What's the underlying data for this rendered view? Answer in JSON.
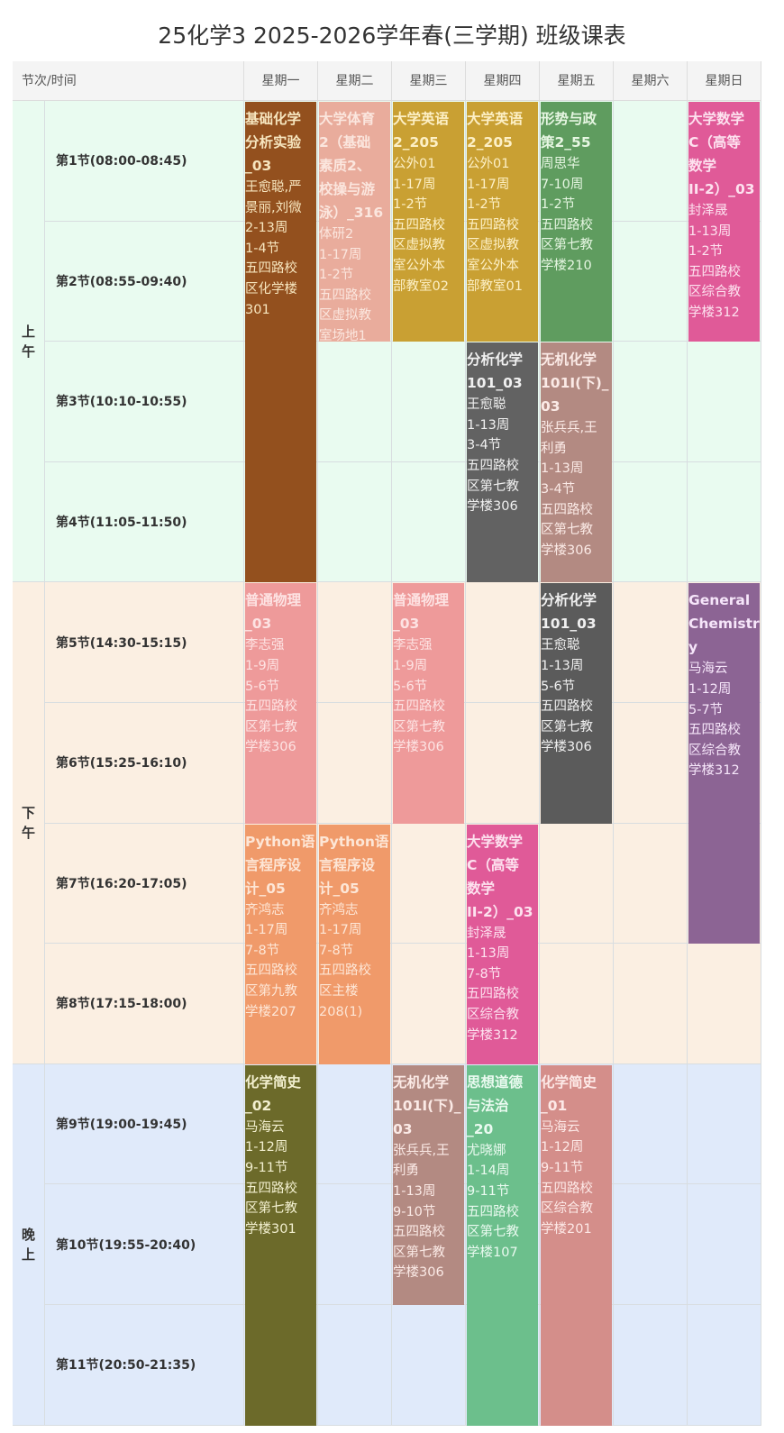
{
  "title": "25化学3 2025-2026学年春(三学期) 班级课表",
  "header": {
    "first": "节次/时间",
    "days": [
      "星期一",
      "星期二",
      "星期三",
      "星期四",
      "星期五",
      "星期六",
      "星期日"
    ]
  },
  "sections": [
    {
      "label": "上午",
      "from": 1,
      "to": 4,
      "bg": "#e9fbf0"
    },
    {
      "label": "下午",
      "from": 5,
      "to": 8,
      "bg": "#fbefe2"
    },
    {
      "label": "晚上",
      "from": 9,
      "to": 11,
      "bg": "#e0eafa"
    }
  ],
  "periods": [
    "第1节(08:00-08:45)",
    "第2节(08:55-09:40)",
    "第3节(10:10-10:55)",
    "第4节(11:05-11:50)",
    "第5节(14:30-15:15)",
    "第6节(15:25-16:10)",
    "第7节(16:20-17:05)",
    "第8节(17:15-18:00)",
    "第9节(19:00-19:45)",
    "第10节(19:55-20:40)",
    "第11节(20:50-21:35)"
  ],
  "courses": [
    {
      "day": 1,
      "start": 1,
      "span": 4,
      "color": "#93501e",
      "text_color": "#f7e6bf",
      "title": [
        "基础化学",
        "分析实验",
        "_03"
      ],
      "details": [
        "王愈聪,严",
        "景丽,刘微",
        "2-13周",
        "1-4节",
        "五四路校",
        "区化学楼",
        "301"
      ]
    },
    {
      "day": 2,
      "start": 1,
      "span": 2,
      "color": "#e9ac9c",
      "text_color": "#fbe6de",
      "title": [
        "大学体育",
        "2（基础",
        "素质2、",
        "校操与游",
        "泳）_316"
      ],
      "details": [
        "体研2",
        "1-17周",
        "1-2节",
        "五四路校",
        "区虚拟教",
        "室场地1"
      ]
    },
    {
      "day": 3,
      "start": 1,
      "span": 2,
      "color": "#c9a033",
      "text_color": "#fdf0c6",
      "title": [
        "大学英语",
        "2_205"
      ],
      "details": [
        "公外01",
        "1-17周",
        "1-2节",
        "五四路校",
        "区虚拟教",
        "室公外本",
        "部教室02"
      ]
    },
    {
      "day": 4,
      "start": 1,
      "span": 2,
      "color": "#c9a033",
      "text_color": "#fdf0c6",
      "title": [
        "大学英语",
        "2_205"
      ],
      "details": [
        "公外01",
        "1-17周",
        "1-2节",
        "五四路校",
        "区虚拟教",
        "室公外本",
        "部教室01"
      ]
    },
    {
      "day": 5,
      "start": 1,
      "span": 2,
      "color": "#5f9c5f",
      "text_color": "#e6f6e2",
      "title": [
        "形势与政",
        "策2_55"
      ],
      "details": [
        "周思华",
        "7-10周",
        "1-2节",
        "五四路校",
        "区第七教",
        "学楼210"
      ]
    },
    {
      "day": 7,
      "start": 1,
      "span": 2,
      "color": "#e05a98",
      "text_color": "#fde2ef",
      "title": [
        "大学数学",
        "C（高等",
        "数学",
        "II-2）_03"
      ],
      "details": [
        "封泽晟",
        "1-13周",
        "1-2节",
        "五四路校",
        "区综合教",
        "学楼312"
      ]
    },
    {
      "day": 4,
      "start": 3,
      "span": 2,
      "color": "#626262",
      "text_color": "#f0f0f0",
      "title": [
        "分析化学",
        "101_03"
      ],
      "details": [
        "王愈聪",
        "1-13周",
        "3-4节",
        "五四路校",
        "区第七教",
        "学楼306"
      ]
    },
    {
      "day": 5,
      "start": 3,
      "span": 2,
      "color": "#b38a82",
      "text_color": "#fbeae6",
      "title": [
        "无机化学",
        "101I(下)_03"
      ],
      "details": [
        "张兵兵,王",
        "利勇",
        "1-13周",
        "3-4节",
        "五四路校",
        "区第七教",
        "学楼306"
      ]
    },
    {
      "day": 1,
      "start": 5,
      "span": 2,
      "color": "#ee9a9a",
      "text_color": "#fde3e3",
      "title": [
        "普通物理",
        "_03"
      ],
      "details": [
        "李志强",
        "1-9周",
        "5-6节",
        "五四路校",
        "区第七教",
        "学楼306"
      ]
    },
    {
      "day": 3,
      "start": 5,
      "span": 2,
      "color": "#ee9a9a",
      "text_color": "#fde3e3",
      "title": [
        "普通物理",
        "_03"
      ],
      "details": [
        "李志强",
        "1-9周",
        "5-6节",
        "五四路校",
        "区第七教",
        "学楼306"
      ]
    },
    {
      "day": 5,
      "start": 5,
      "span": 2,
      "color": "#5b5b5b",
      "text_color": "#f0f0f0",
      "title": [
        "分析化学",
        "101_03"
      ],
      "details": [
        "王愈聪",
        "1-13周",
        "5-6节",
        "五四路校",
        "区第七教",
        "学楼306"
      ]
    },
    {
      "day": 7,
      "start": 5,
      "span": 3,
      "color": "#8c6494",
      "text_color": "#f6e6fa",
      "title": [
        "General",
        "Chemistry"
      ],
      "details": [
        "马海云",
        "1-12周",
        "5-7节",
        "五四路校",
        "区综合教",
        "学楼312"
      ]
    },
    {
      "day": 1,
      "start": 7,
      "span": 2,
      "color": "#f09a6a",
      "text_color": "#fde6d6",
      "title": [
        "Python语",
        "言程序设",
        "计_05"
      ],
      "details": [
        "齐鸿志",
        "1-17周",
        "7-8节",
        "五四路校",
        "区第九教",
        "学楼207"
      ]
    },
    {
      "day": 2,
      "start": 7,
      "span": 2,
      "color": "#f09a6a",
      "text_color": "#fde6d6",
      "title": [
        "Python语",
        "言程序设",
        "计_05"
      ],
      "details": [
        "齐鸿志",
        "1-17周",
        "7-8节",
        "五四路校",
        "区主楼",
        "208(1)"
      ]
    },
    {
      "day": 4,
      "start": 7,
      "span": 2,
      "color": "#e05a98",
      "text_color": "#fde2ef",
      "title": [
        "大学数学",
        "C（高等",
        "数学",
        "II-2）_03"
      ],
      "details": [
        "封泽晟",
        "1-13周",
        "7-8节",
        "五四路校",
        "区综合教",
        "学楼312"
      ]
    },
    {
      "day": 1,
      "start": 9,
      "span": 3,
      "color": "#6c6a2a",
      "text_color": "#f3f0d0",
      "title": [
        "化学简史",
        "_02"
      ],
      "details": [
        "马海云",
        "1-12周",
        "9-11节",
        "五四路校",
        "区第七教",
        "学楼301"
      ]
    },
    {
      "day": 3,
      "start": 9,
      "span": 2,
      "color": "#b38a82",
      "text_color": "#fbeae6",
      "title": [
        "无机化学",
        "101I(下)_03"
      ],
      "details": [
        "张兵兵,王",
        "利勇",
        "1-13周",
        "9-10节",
        "五四路校",
        "区第七教",
        "学楼306"
      ]
    },
    {
      "day": 4,
      "start": 9,
      "span": 3,
      "color": "#6cbf8c",
      "text_color": "#eafaf0",
      "title": [
        "思想道德",
        "与法治",
        "_20"
      ],
      "details": [
        "尤晓娜",
        "1-14周",
        "9-11节",
        "五四路校",
        "区第七教",
        "学楼107"
      ]
    },
    {
      "day": 5,
      "start": 9,
      "span": 3,
      "color": "#d48e8a",
      "text_color": "#fde9e7",
      "title": [
        "化学简史",
        "_01"
      ],
      "details": [
        "马海云",
        "1-12周",
        "9-11节",
        "五四路校",
        "区综合教",
        "学楼201"
      ]
    }
  ]
}
